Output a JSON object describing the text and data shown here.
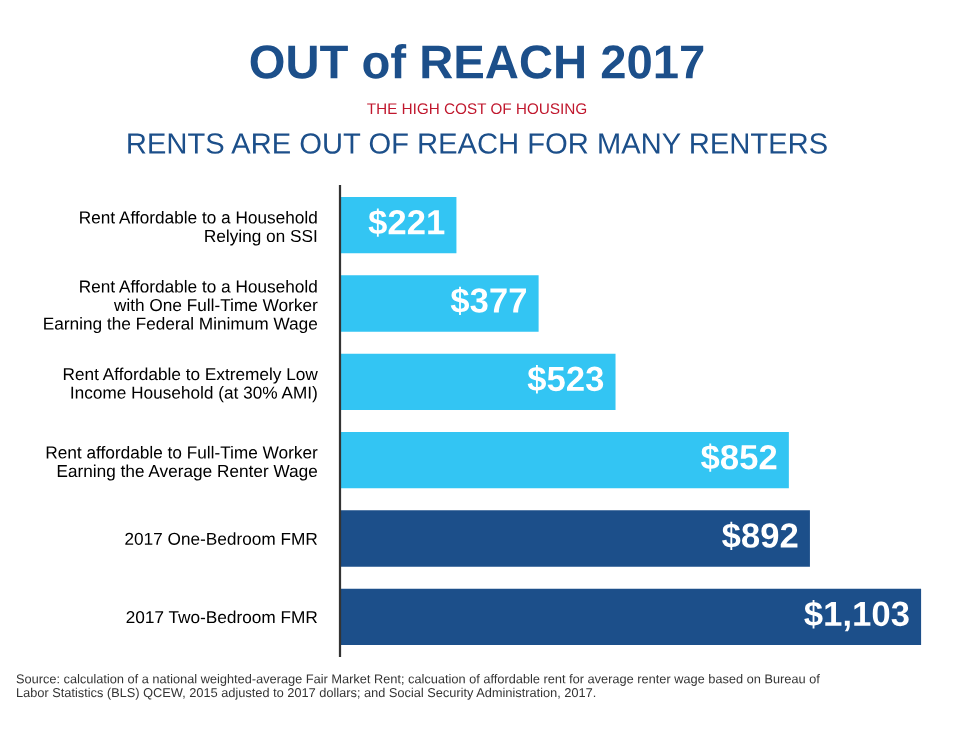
{
  "chart_data": {
    "type": "bar",
    "orientation": "horizontal",
    "title": "OUT of REACH 2017",
    "subtitle": "RENTS ARE OUT OF REACH FOR MANY RENTERS",
    "annotations": [
      "THE HIGH COST OF HOUSING",
      "Source: calculation of a national weighted-average Fair Market Rent; calcuation of affordable rent for average renter wage based on Bureau of Labor Statistics (BLS) QCEW, 2015 adjusted to 2017 dollars; and Social Security Administration, 2017."
    ],
    "categories": [
      "Rent Affordable to a Household\nRelying on SSI",
      "Rent Affordable to a Household\nwith One Full-Time Worker\nEarning the Federal Minimum Wage",
      "Rent Affordable to Extremely Low\nIncome Household (at 30% AMI)",
      "Rent affordable to Full-Time Worker\nEarning the Average Renter Wage",
      "2017 One-Bedroom FMR",
      "2017 Two-Bedroom FMR"
    ],
    "values": [
      221,
      377,
      523,
      852,
      892,
      1103
    ],
    "value_labels": [
      "$221",
      "$377",
      "$523",
      "$852",
      "$892",
      "$1,103"
    ],
    "colors": [
      "#33c5f3",
      "#33c5f3",
      "#33c5f3",
      "#33c5f3",
      "#1c4f8a",
      "#1c4f8a"
    ],
    "legend": false,
    "grid": false
  }
}
